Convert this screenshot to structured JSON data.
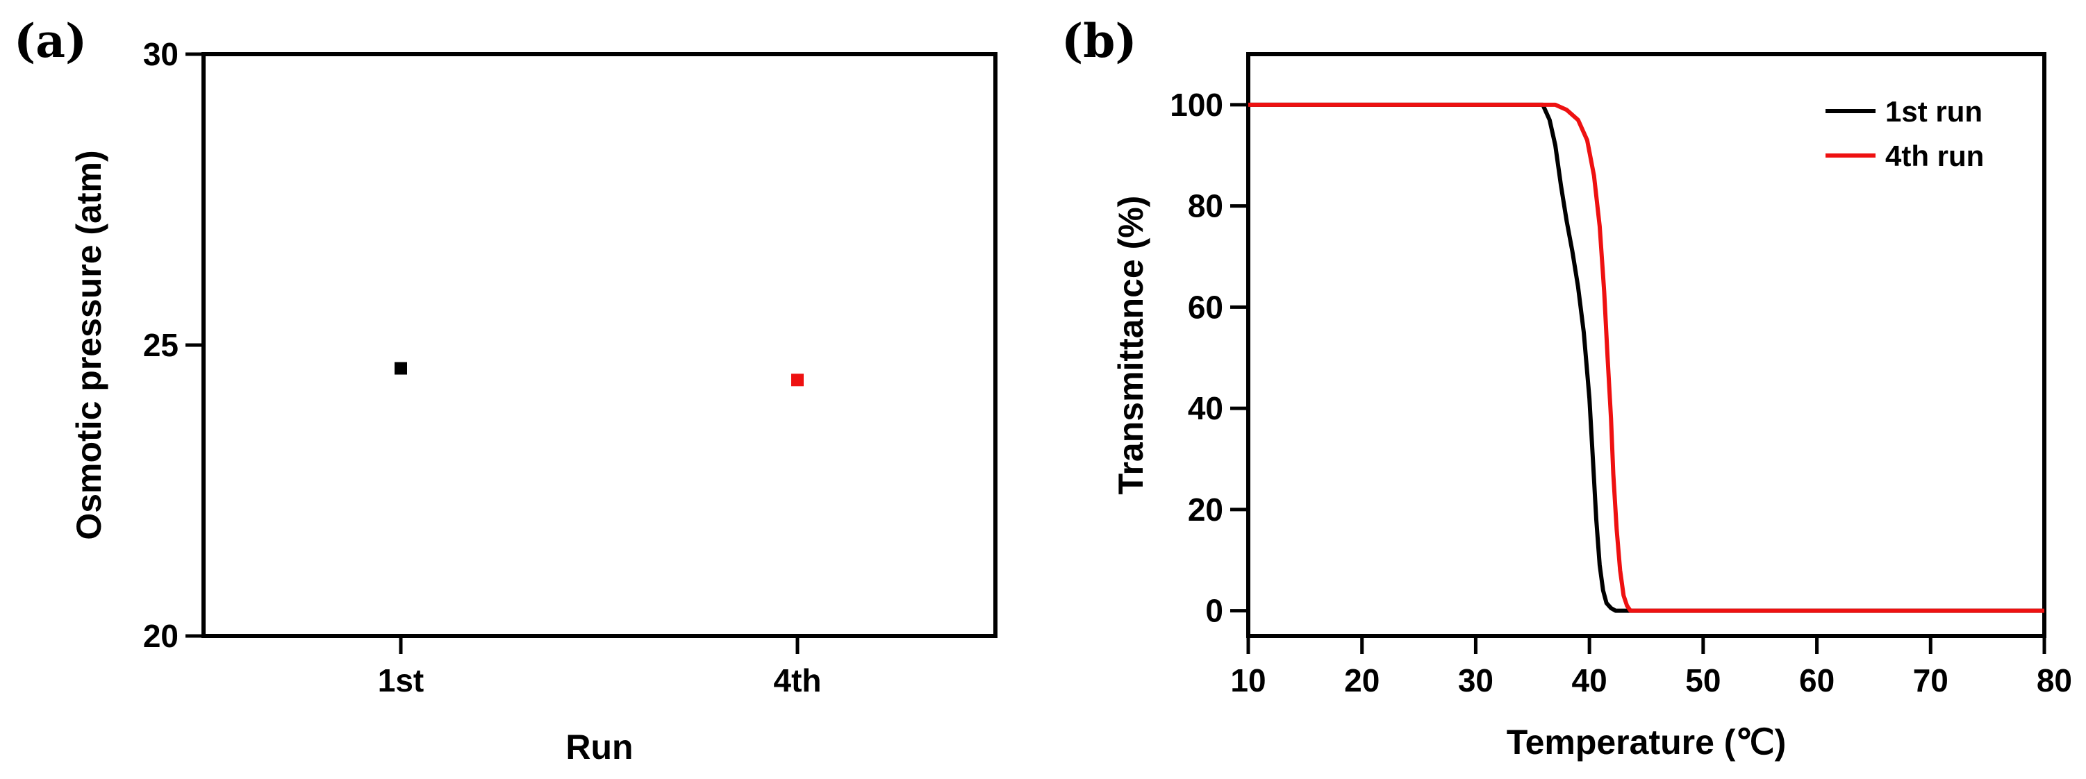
{
  "panels": {
    "a_label": "(a)",
    "b_label": "(b)"
  },
  "chart_data": [
    {
      "type": "scatter",
      "title": "",
      "xlabel": "Run",
      "ylabel": "Osmotic pressure (atm)",
      "categories": [
        "1st",
        "4th"
      ],
      "ylim": [
        20,
        30
      ],
      "yticks": [
        "20",
        "25",
        "30"
      ],
      "grid": false,
      "series": [
        {
          "label": "1st",
          "value": 24.6,
          "color": "#000000"
        },
        {
          "label": "4th",
          "value": 24.4,
          "color": "#ee1111"
        }
      ]
    },
    {
      "type": "line",
      "title": "",
      "xlabel": "Temperature (℃)",
      "ylabel": "Transmittance (%)",
      "xlim": [
        10,
        80
      ],
      "ylim": [
        -5,
        110
      ],
      "xticks": [
        "10",
        "20",
        "30",
        "40",
        "50",
        "60",
        "70",
        "80"
      ],
      "yticks": [
        "0",
        "20",
        "40",
        "60",
        "80",
        "100"
      ],
      "grid": false,
      "legend_position": "top-right",
      "series": [
        {
          "name": "1st run",
          "color": "#000000",
          "x": [
            10,
            35.9,
            36.5,
            37.0,
            37.5,
            38.0,
            38.5,
            39.0,
            39.5,
            40.0,
            40.3,
            40.6,
            40.9,
            41.2,
            41.5,
            41.9,
            42.3,
            43,
            80
          ],
          "y": [
            100,
            100,
            97,
            92,
            84,
            77,
            71,
            64,
            55,
            42,
            30,
            18,
            9,
            4,
            1.5,
            0.5,
            0,
            0,
            0
          ]
        },
        {
          "name": "4th run",
          "color": "#ee1111",
          "x": [
            10,
            36,
            37,
            38,
            39,
            39.8,
            40.4,
            40.9,
            41.3,
            41.6,
            41.9,
            42.1,
            42.4,
            42.7,
            43.0,
            43.3,
            43.6,
            80
          ],
          "y": [
            100,
            100,
            100,
            99,
            97,
            93,
            86,
            76,
            63,
            50,
            38,
            27,
            16,
            8,
            3,
            1,
            0,
            0
          ]
        }
      ]
    }
  ]
}
